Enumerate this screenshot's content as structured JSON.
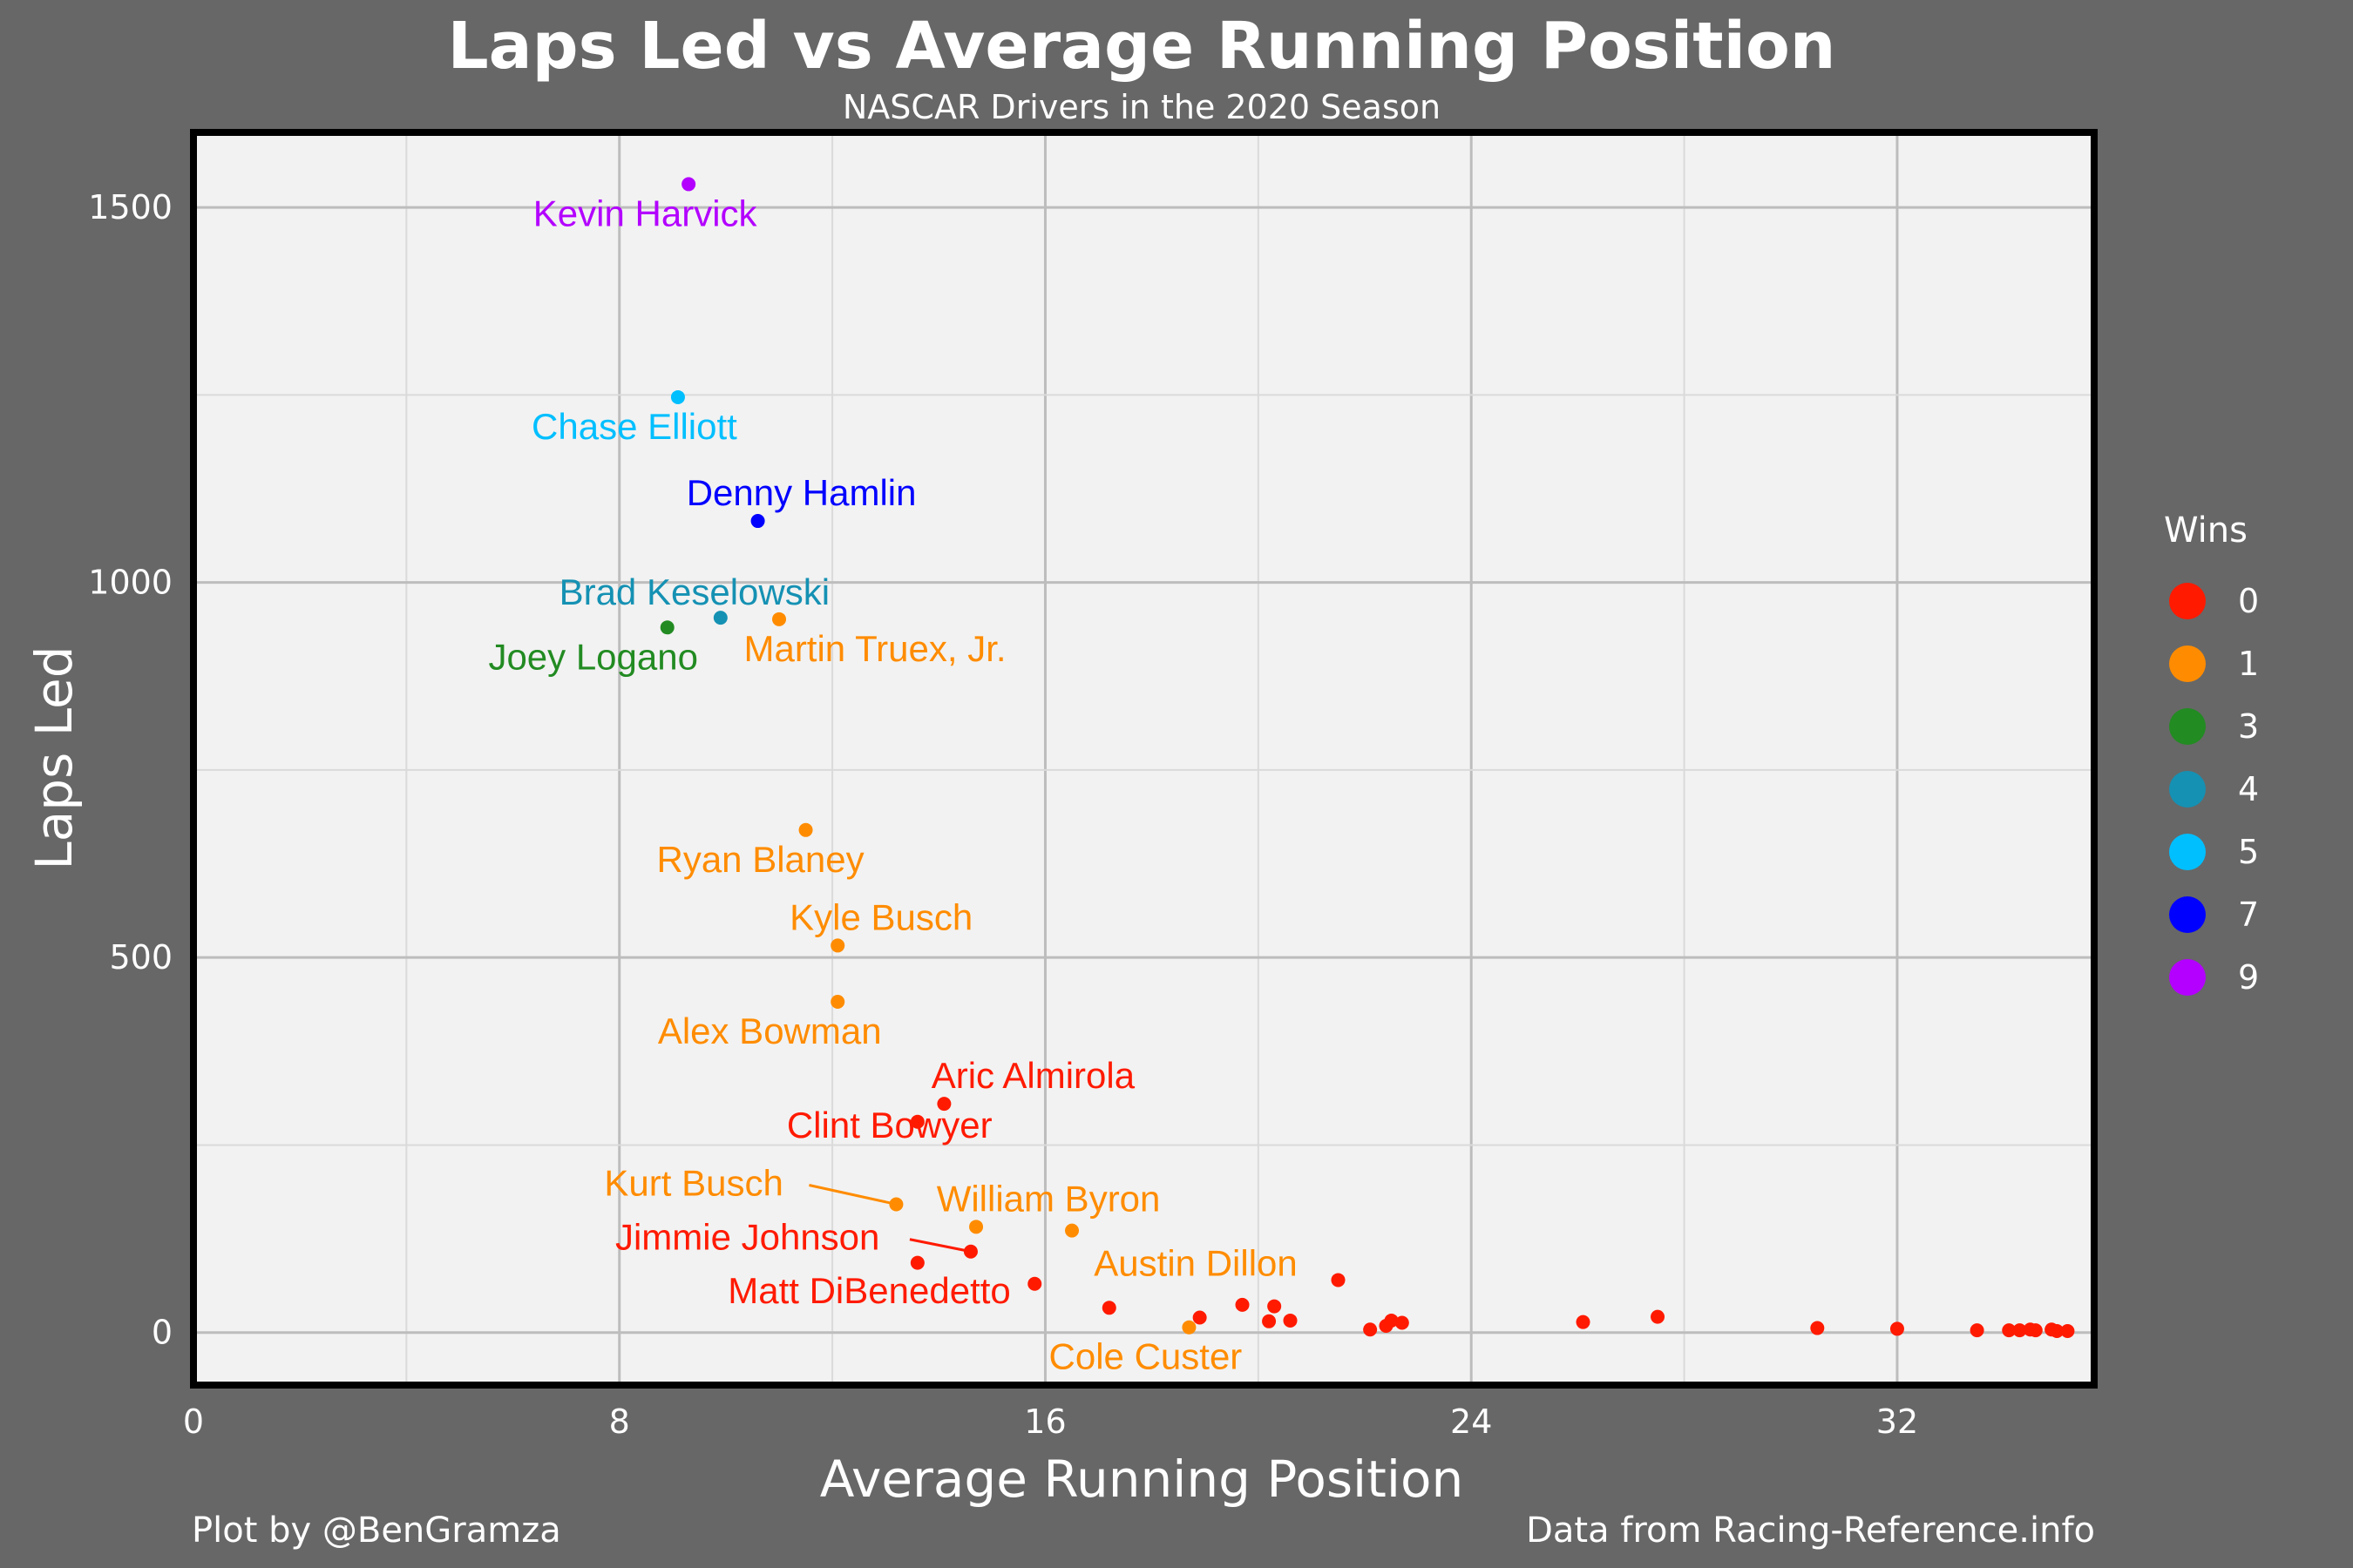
{
  "chart_data": {
    "type": "scatter",
    "title": "Laps Led vs Average Running Position",
    "subtitle": "NASCAR Drivers in the 2020 Season",
    "xlabel": "Average Running Position",
    "ylabel": "Laps Led",
    "xlim": [
      0,
      35.7
    ],
    "ylim": [
      -70,
      1600
    ],
    "x_ticks": [
      0,
      8,
      16,
      24,
      32
    ],
    "y_ticks": [
      0,
      500,
      1000,
      1500
    ],
    "grid": true,
    "legend": {
      "title": "Wins",
      "placement": "right",
      "entries": [
        {
          "label": "0",
          "color": "#ff1a00"
        },
        {
          "label": "1",
          "color": "#ff8c00"
        },
        {
          "label": "3",
          "color": "#228b22"
        },
        {
          "label": "4",
          "color": "#1591b3"
        },
        {
          "label": "5",
          "color": "#00bfff"
        },
        {
          "label": "7",
          "color": "#0000ff"
        },
        {
          "label": "9",
          "color": "#b300ff"
        }
      ]
    },
    "labeled_points": [
      {
        "name": "Kevin Harvick",
        "x": 9.3,
        "y": 1531,
        "wins": 9
      },
      {
        "name": "Chase Elliott",
        "x": 9.1,
        "y": 1247,
        "wins": 5
      },
      {
        "name": "Denny Hamlin",
        "x": 10.6,
        "y": 1082,
        "wins": 7
      },
      {
        "name": "Brad Keselowski",
        "x": 9.9,
        "y": 953,
        "wins": 4
      },
      {
        "name": "Joey Logano",
        "x": 8.9,
        "y": 940,
        "wins": 3
      },
      {
        "name": "Martin Truex, Jr.",
        "x": 11.0,
        "y": 951,
        "wins": 1
      },
      {
        "name": "Ryan Blaney",
        "x": 11.5,
        "y": 670,
        "wins": 1
      },
      {
        "name": "Kyle Busch",
        "x": 12.1,
        "y": 516,
        "wins": 1
      },
      {
        "name": "Alex Bowman",
        "x": 12.1,
        "y": 441,
        "wins": 1
      },
      {
        "name": "Aric Almirola",
        "x": 14.1,
        "y": 305,
        "wins": 0
      },
      {
        "name": "Clint Bowyer",
        "x": 13.6,
        "y": 281,
        "wins": 0
      },
      {
        "name": "Kurt Busch",
        "x": 13.2,
        "y": 171,
        "wins": 1
      },
      {
        "name": "William Byron",
        "x": 14.7,
        "y": 141,
        "wins": 1
      },
      {
        "name": "Austin Dillon",
        "x": 16.5,
        "y": 136,
        "wins": 1
      },
      {
        "name": "Jimmie Johnson",
        "x": 14.6,
        "y": 108,
        "wins": 0
      },
      {
        "name": "Matt DiBenedetto",
        "x": 15.8,
        "y": 65,
        "wins": 0
      },
      {
        "name": "Cole Custer",
        "x": 18.7,
        "y": 7,
        "wins": 1
      }
    ],
    "unlabeled_points": [
      {
        "x": 13.6,
        "y": 93,
        "wins": 0
      },
      {
        "x": 17.2,
        "y": 33,
        "wins": 0
      },
      {
        "x": 18.9,
        "y": 20,
        "wins": 0
      },
      {
        "x": 19.7,
        "y": 37,
        "wins": 0
      },
      {
        "x": 20.2,
        "y": 15,
        "wins": 0
      },
      {
        "x": 20.3,
        "y": 35,
        "wins": 0
      },
      {
        "x": 20.6,
        "y": 16,
        "wins": 0
      },
      {
        "x": 21.5,
        "y": 70,
        "wins": 0
      },
      {
        "x": 22.1,
        "y": 4,
        "wins": 0
      },
      {
        "x": 22.4,
        "y": 9,
        "wins": 0
      },
      {
        "x": 22.5,
        "y": 16,
        "wins": 0
      },
      {
        "x": 22.7,
        "y": 13,
        "wins": 0
      },
      {
        "x": 26.1,
        "y": 14,
        "wins": 0
      },
      {
        "x": 27.5,
        "y": 21,
        "wins": 0
      },
      {
        "x": 30.5,
        "y": 6,
        "wins": 0
      },
      {
        "x": 32.0,
        "y": 5,
        "wins": 0
      },
      {
        "x": 33.5,
        "y": 3,
        "wins": 0
      },
      {
        "x": 34.1,
        "y": 3,
        "wins": 0
      },
      {
        "x": 34.3,
        "y": 3,
        "wins": 0
      },
      {
        "x": 34.5,
        "y": 4,
        "wins": 0
      },
      {
        "x": 34.6,
        "y": 3,
        "wins": 0
      },
      {
        "x": 34.9,
        "y": 4,
        "wins": 0
      },
      {
        "x": 35.0,
        "y": 2,
        "wins": 0
      },
      {
        "x": 35.2,
        "y": 2,
        "wins": 0
      }
    ]
  },
  "captions": {
    "left": "Plot by @BenGramza",
    "right": "Data from Racing-Reference.info"
  }
}
